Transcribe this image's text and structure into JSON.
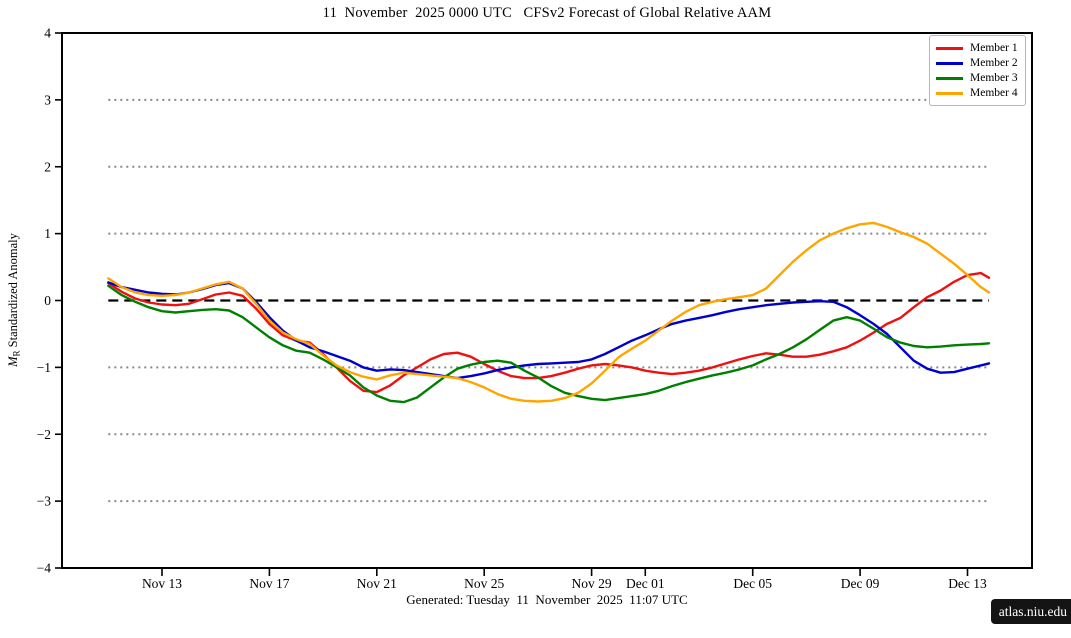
{
  "title": "11  November  2025 0000 UTC   CFSv2 Forecast of Global Relative AAM",
  "footer": {
    "generated": "Generated: Tuesday  11  November  2025  11:07 UTC"
  },
  "badge": {
    "text": "atlas.niu.edu"
  },
  "legend": {
    "items": [
      {
        "label": "Member 1",
        "color": "#ee1111"
      },
      {
        "label": "Member 2",
        "color": "#0000cd"
      },
      {
        "label": "Member 3",
        "color": "#008000"
      },
      {
        "label": "Member 4",
        "color": "#ffa500"
      }
    ]
  },
  "chart_data": {
    "type": "line",
    "title": "11  November  2025 0000 UTC   CFSv2 Forecast of Global Relative AAM",
    "xlabel": "",
    "ylabel": {
      "symbol": "M",
      "subscript": "R",
      "text": " Standardized Anomaly"
    },
    "ylim": [
      -4,
      4
    ],
    "grid": "horizontal dotted at ±1,±2,±3; dashed black at 0",
    "legend_position": "top-right",
    "x_unit_note": "days since 11 Nov 2025 0000 UTC",
    "x_ticks": [
      {
        "label": "Nov 13",
        "d": 2
      },
      {
        "label": "Nov 17",
        "d": 6
      },
      {
        "label": "Nov 21",
        "d": 10
      },
      {
        "label": "Nov 25",
        "d": 14
      },
      {
        "label": "Nov 29",
        "d": 18
      },
      {
        "label": "Dec 01",
        "d": 20
      },
      {
        "label": "Dec 05",
        "d": 24
      },
      {
        "label": "Dec 09",
        "d": 28
      },
      {
        "label": "Dec 13",
        "d": 32
      }
    ],
    "y_ticks": [
      {
        "label": "4",
        "v": 4
      },
      {
        "label": "3",
        "v": 3
      },
      {
        "label": "2",
        "v": 2
      },
      {
        "label": "1",
        "v": 1
      },
      {
        "label": "0",
        "v": 0
      },
      {
        "label": "−1",
        "v": -1
      },
      {
        "label": "−2",
        "v": -2
      },
      {
        "label": "−3",
        "v": -3
      },
      {
        "label": "−4",
        "v": -4
      }
    ],
    "dotted_gridline_values": [
      3,
      2,
      1,
      -1,
      -2,
      -3
    ],
    "zero_line_value": 0,
    "colors": {
      "gridline": "#888888",
      "zero_line": "#000000",
      "frame": "#000000"
    },
    "x": [
      0,
      0.5,
      1,
      1.5,
      2,
      2.5,
      3,
      3.5,
      4,
      4.5,
      5,
      5.5,
      6,
      6.5,
      7,
      7.5,
      8,
      8.5,
      9,
      9.5,
      10,
      10.5,
      11,
      11.5,
      12,
      12.5,
      13,
      13.5,
      14,
      14.5,
      15,
      15.5,
      16,
      16.5,
      17,
      17.5,
      18,
      18.5,
      19,
      19.5,
      20,
      20.5,
      21,
      21.5,
      22,
      22.5,
      23,
      23.5,
      24,
      24.5,
      25,
      25.5,
      26,
      26.5,
      27,
      27.5,
      28,
      28.5,
      29,
      29.5,
      30,
      30.5,
      31,
      31.5,
      32,
      32.5,
      32.8
    ],
    "series": [
      {
        "name": "Member 1",
        "color": "#ee1111",
        "values": [
          0.26,
          0.13,
          0.03,
          -0.03,
          -0.06,
          -0.07,
          -0.05,
          0.02,
          0.09,
          0.12,
          0.07,
          -0.12,
          -0.35,
          -0.52,
          -0.6,
          -0.63,
          -0.8,
          -1.0,
          -1.2,
          -1.35,
          -1.37,
          -1.27,
          -1.12,
          -1.0,
          -0.88,
          -0.8,
          -0.78,
          -0.84,
          -0.95,
          -1.05,
          -1.13,
          -1.16,
          -1.16,
          -1.13,
          -1.08,
          -1.02,
          -0.97,
          -0.95,
          -0.97,
          -1.0,
          -1.05,
          -1.08,
          -1.1,
          -1.08,
          -1.05,
          -1.0,
          -0.94,
          -0.88,
          -0.83,
          -0.79,
          -0.81,
          -0.84,
          -0.84,
          -0.81,
          -0.76,
          -0.7,
          -0.6,
          -0.48,
          -0.35,
          -0.26,
          -0.1,
          0.05,
          0.15,
          0.28,
          0.38,
          0.41,
          0.34
        ]
      },
      {
        "name": "Member 2",
        "color": "#0000cd",
        "values": [
          0.27,
          0.2,
          0.16,
          0.12,
          0.1,
          0.09,
          0.12,
          0.17,
          0.23,
          0.26,
          0.18,
          -0.02,
          -0.25,
          -0.45,
          -0.6,
          -0.7,
          -0.76,
          -0.83,
          -0.9,
          -1.0,
          -1.05,
          -1.03,
          -1.04,
          -1.07,
          -1.1,
          -1.13,
          -1.16,
          -1.13,
          -1.09,
          -1.04,
          -1.0,
          -0.97,
          -0.95,
          -0.94,
          -0.93,
          -0.92,
          -0.88,
          -0.8,
          -0.7,
          -0.6,
          -0.52,
          -0.43,
          -0.35,
          -0.3,
          -0.26,
          -0.22,
          -0.17,
          -0.13,
          -0.1,
          -0.07,
          -0.05,
          -0.03,
          -0.02,
          -0.01,
          -0.02,
          -0.1,
          -0.22,
          -0.35,
          -0.5,
          -0.7,
          -0.9,
          -1.02,
          -1.08,
          -1.07,
          -1.02,
          -0.97,
          -0.94
        ]
      },
      {
        "name": "Member 3",
        "color": "#008000",
        "values": [
          0.22,
          0.08,
          -0.02,
          -0.1,
          -0.16,
          -0.18,
          -0.16,
          -0.14,
          -0.13,
          -0.15,
          -0.25,
          -0.4,
          -0.55,
          -0.67,
          -0.75,
          -0.78,
          -0.88,
          -1.0,
          -1.12,
          -1.3,
          -1.42,
          -1.5,
          -1.52,
          -1.45,
          -1.3,
          -1.15,
          -1.02,
          -0.96,
          -0.92,
          -0.9,
          -0.93,
          -1.05,
          -1.15,
          -1.28,
          -1.38,
          -1.43,
          -1.47,
          -1.49,
          -1.46,
          -1.43,
          -1.4,
          -1.35,
          -1.28,
          -1.22,
          -1.17,
          -1.12,
          -1.08,
          -1.03,
          -0.97,
          -0.88,
          -0.8,
          -0.7,
          -0.58,
          -0.44,
          -0.3,
          -0.25,
          -0.3,
          -0.42,
          -0.55,
          -0.63,
          -0.68,
          -0.7,
          -0.69,
          -0.67,
          -0.66,
          -0.65,
          -0.64
        ]
      },
      {
        "name": "Member 4",
        "color": "#ffa500",
        "values": [
          0.33,
          0.2,
          0.12,
          0.08,
          0.07,
          0.08,
          0.12,
          0.18,
          0.24,
          0.28,
          0.18,
          -0.05,
          -0.3,
          -0.48,
          -0.58,
          -0.65,
          -0.82,
          -0.97,
          -1.07,
          -1.14,
          -1.18,
          -1.12,
          -1.08,
          -1.1,
          -1.12,
          -1.14,
          -1.16,
          -1.22,
          -1.3,
          -1.4,
          -1.47,
          -1.5,
          -1.51,
          -1.5,
          -1.46,
          -1.38,
          -1.24,
          -1.05,
          -0.85,
          -0.72,
          -0.6,
          -0.45,
          -0.3,
          -0.17,
          -0.07,
          -0.02,
          0.02,
          0.05,
          0.08,
          0.18,
          0.38,
          0.58,
          0.75,
          0.9,
          1.0,
          1.08,
          1.14,
          1.16,
          1.1,
          1.02,
          0.95,
          0.85,
          0.7,
          0.55,
          0.38,
          0.2,
          0.12
        ]
      }
    ]
  }
}
